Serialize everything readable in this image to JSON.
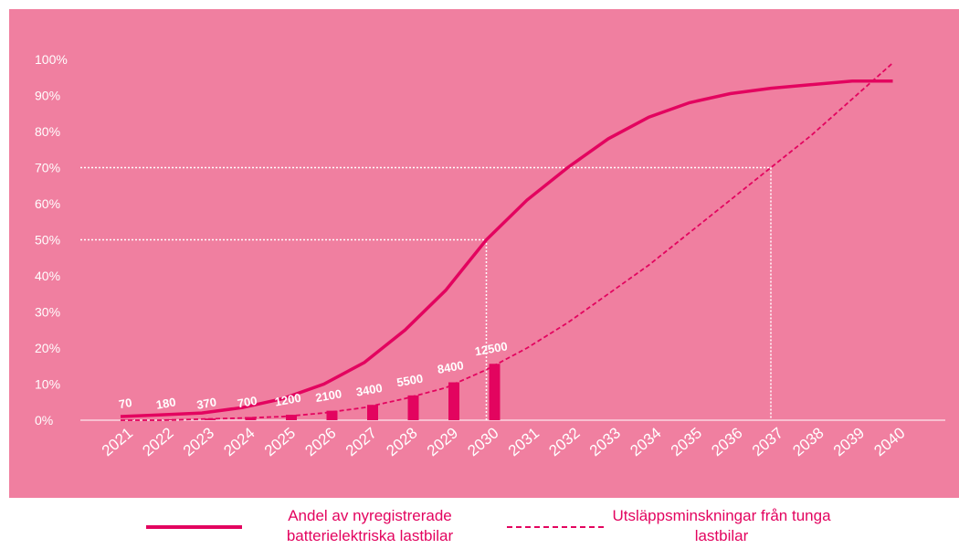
{
  "chart_data": {
    "type": "line",
    "categories": [
      "2021",
      "2022",
      "2023",
      "2024",
      "2025",
      "2026",
      "2027",
      "2028",
      "2029",
      "2030",
      "2031",
      "2032",
      "2033",
      "2034",
      "2035",
      "2036",
      "2037",
      "2038",
      "2039",
      "2040"
    ],
    "series": [
      {
        "name": "Andel av nyregistrerade batterielektriska lastbilar",
        "color": "#e3045f",
        "style": "solid",
        "values": [
          1,
          1.5,
          2,
          3.5,
          6,
          10,
          16,
          25,
          36,
          50,
          61,
          70,
          78,
          84,
          88,
          90.5,
          92,
          93,
          94,
          94
        ]
      },
      {
        "name": "Utsläppsminskningar från tunga lastbilar",
        "color": "#e3045f",
        "style": "dashed",
        "values": [
          0,
          0,
          0.3,
          0.6,
          1,
          2,
          3.5,
          6,
          9,
          14,
          20,
          27,
          35,
          43,
          52,
          61,
          70,
          79,
          89,
          99
        ]
      },
      {
        "type": "bar",
        "axis": "y2",
        "color": "#e3045f",
        "values": [
          70,
          180,
          370,
          700,
          1200,
          2100,
          3400,
          5500,
          8400,
          12500,
          null,
          null,
          null,
          null,
          null,
          null,
          null,
          null,
          null,
          null
        ]
      }
    ],
    "ylim": [
      0,
      100
    ],
    "yticks": [
      {
        "value": 0,
        "label": "0%"
      },
      {
        "value": 10,
        "label": "10%"
      },
      {
        "value": 20,
        "label": "20%"
      },
      {
        "value": 30,
        "label": "30%"
      },
      {
        "value": 40,
        "label": "40%"
      },
      {
        "value": 50,
        "label": "50%"
      },
      {
        "value": 60,
        "label": "60%"
      },
      {
        "value": 70,
        "label": "70%"
      },
      {
        "value": 80,
        "label": "80%"
      },
      {
        "value": 90,
        "label": "90%"
      },
      {
        "value": 100,
        "label": "100%"
      }
    ],
    "y2lim": [
      0,
      80000
    ],
    "guides": [
      {
        "x": 9,
        "y": 50
      },
      {
        "x": 16,
        "y": 70
      }
    ],
    "background": "#f07fa0"
  }
}
